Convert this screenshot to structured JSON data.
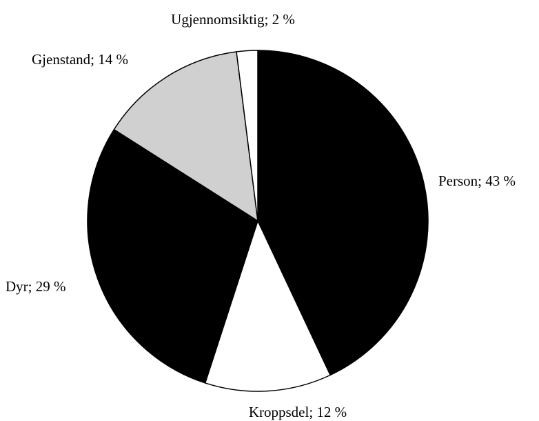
{
  "chart_data": {
    "type": "pie",
    "values": [
      43,
      12,
      29,
      14,
      2
    ],
    "value_labels": [
      "Person; 43 %",
      "Kroppsdel; 12 %",
      "Dyr; 29 %",
      "Gjenstand; 14 %",
      "Ugjennomsiktig; 2 %"
    ],
    "colors": [
      "#000000",
      "#ffffff",
      "#000000",
      "#d0d0d0",
      "#ffffff"
    ]
  }
}
